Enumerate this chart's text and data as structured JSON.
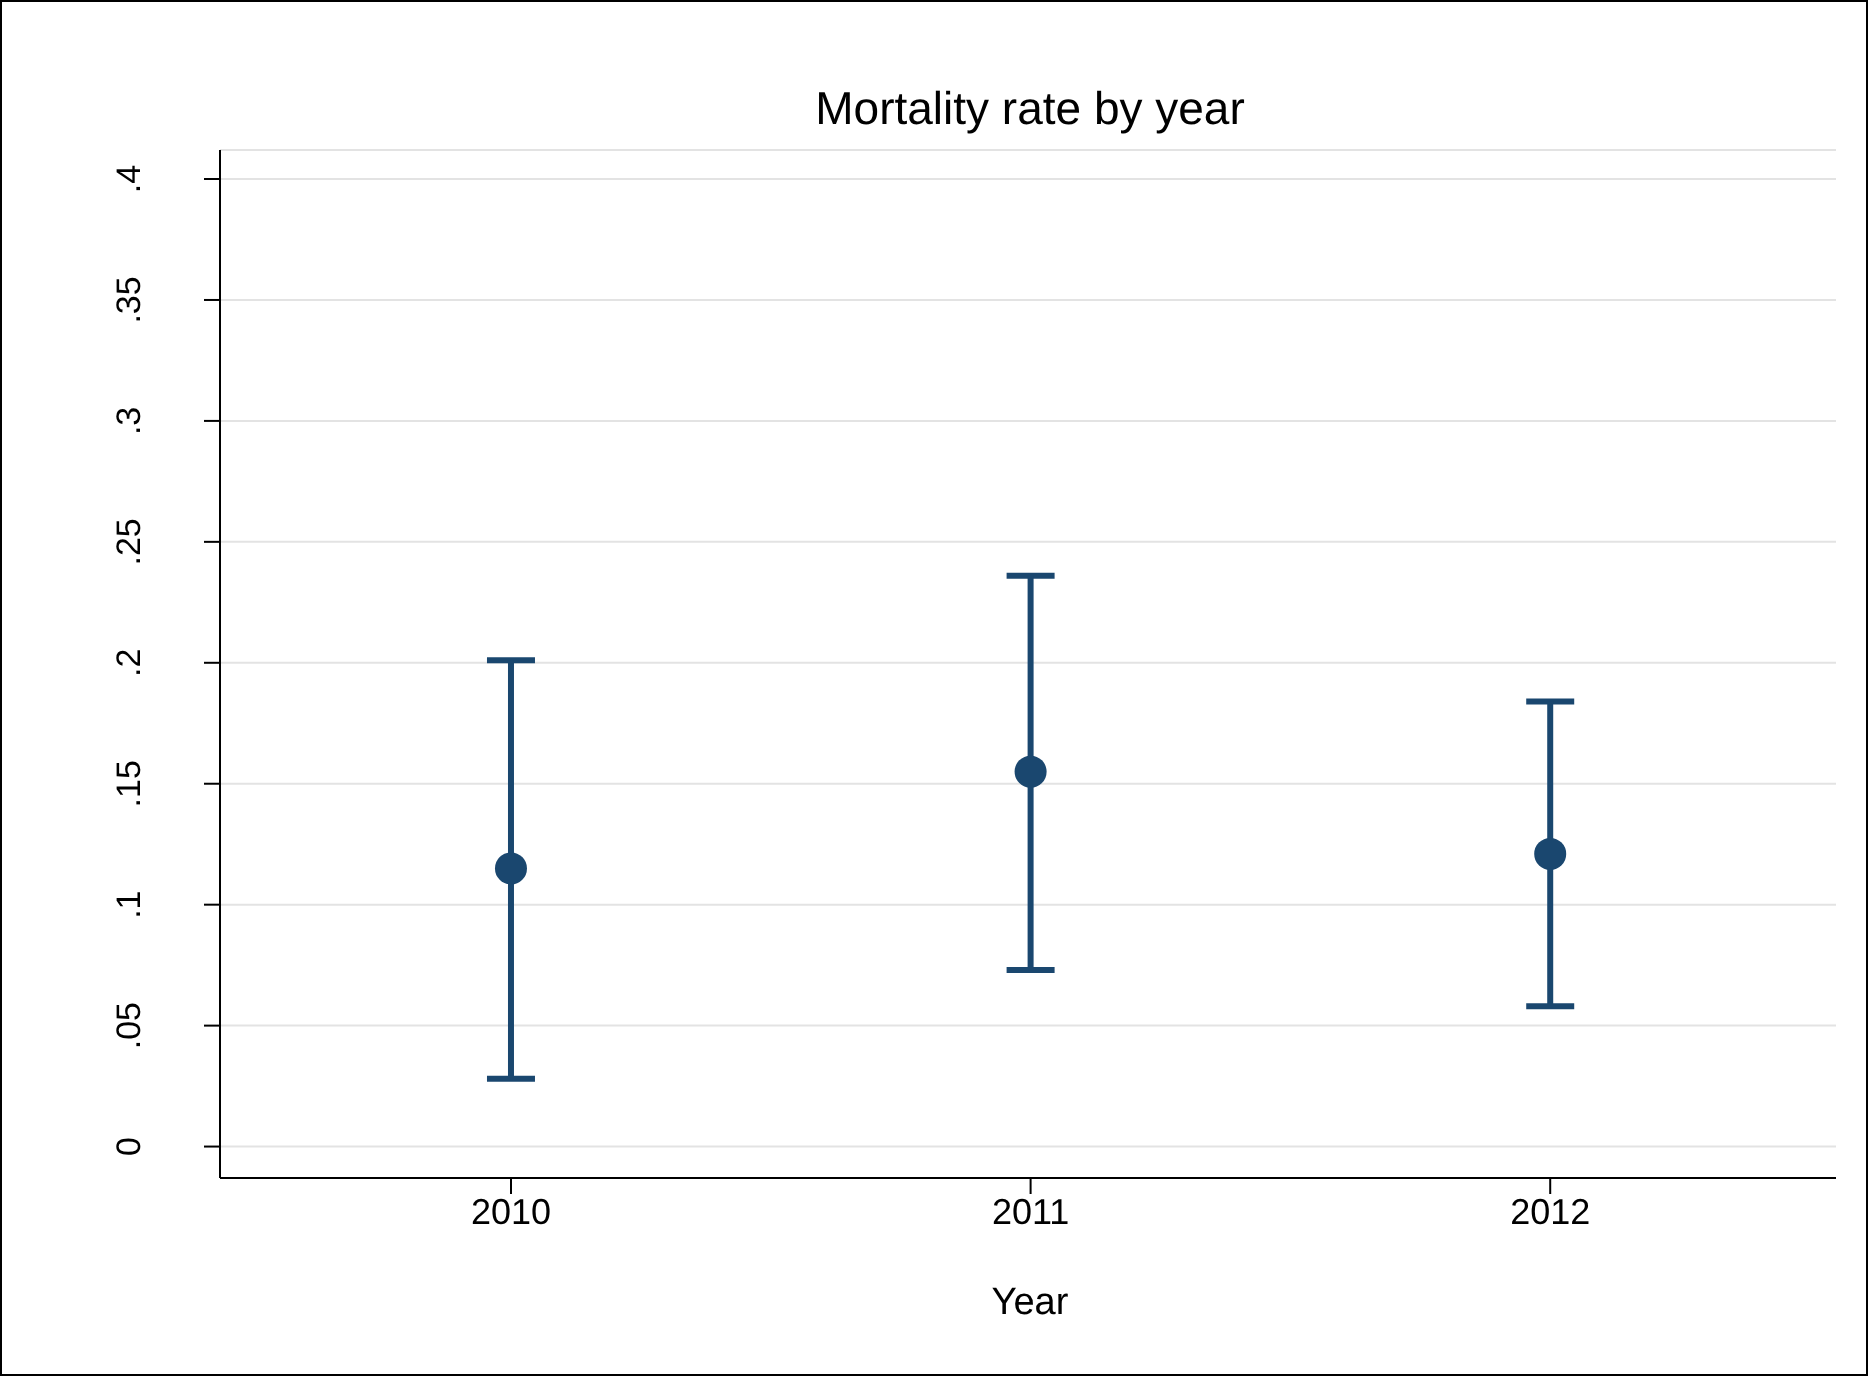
{
  "chart_data": {
    "type": "scatter",
    "title": "Mortality rate by year",
    "xlabel": "Year",
    "categories": [
      "2010",
      "2011",
      "2012"
    ],
    "values": [
      0.115,
      0.155,
      0.121
    ],
    "errors": [
      [
        0.028,
        0.201
      ],
      [
        0.073,
        0.236
      ],
      [
        0.058,
        0.184
      ]
    ],
    "color": "#1a476f",
    "marker": "circle",
    "ylim": [
      -0.013,
      0.412
    ],
    "yticks": [
      {
        "value": 0,
        "label": "0"
      },
      {
        "value": 0.05,
        "label": ".05"
      },
      {
        "value": 0.1,
        "label": ".1"
      },
      {
        "value": 0.15,
        "label": ".15"
      },
      {
        "value": 0.2,
        "label": ".2"
      },
      {
        "value": 0.25,
        "label": ".25"
      },
      {
        "value": 0.3,
        "label": ".3"
      },
      {
        "value": 0.35,
        "label": ".35"
      },
      {
        "value": 0.4,
        "label": ".4"
      }
    ],
    "grid": "y",
    "legend": false
  }
}
